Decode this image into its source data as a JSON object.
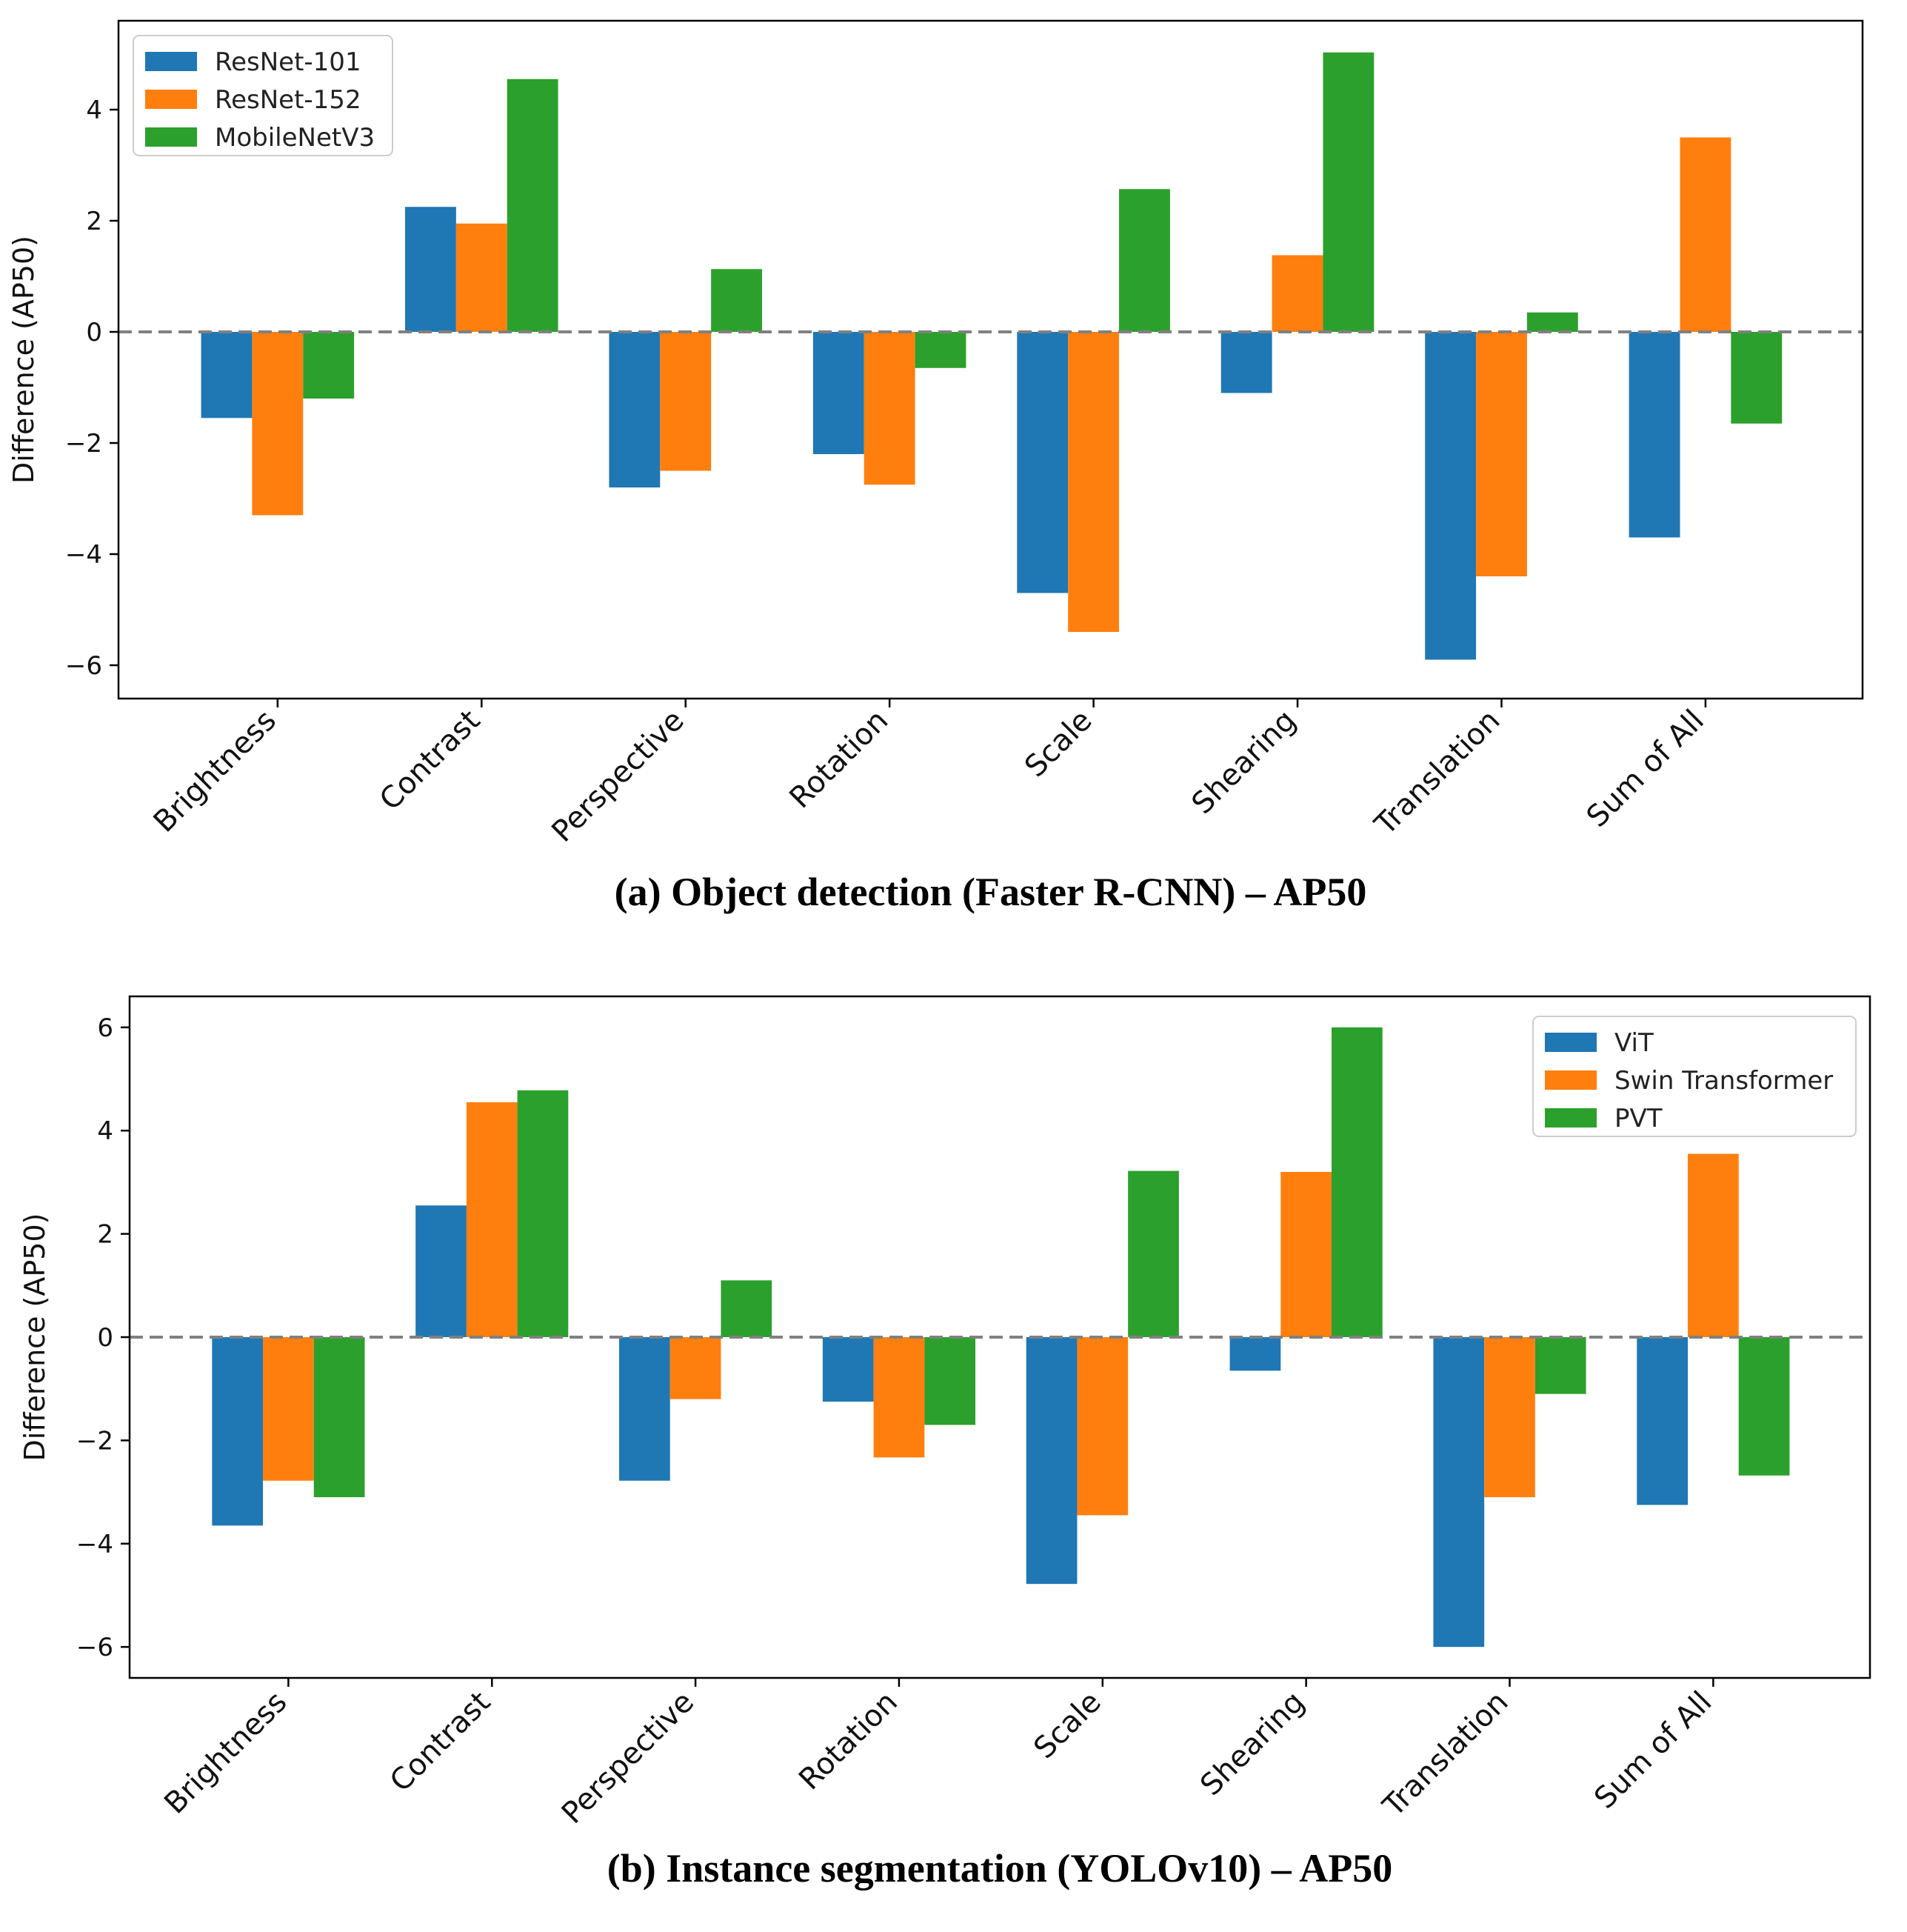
{
  "chart_data": [
    {
      "type": "bar",
      "title": "(a) Object detection (Faster R-CNN) – AP50",
      "xlabel": "",
      "ylabel": "Difference (AP50)",
      "ylim": [
        -6.6,
        5.6
      ],
      "yticks": [
        -6,
        -4,
        -2,
        0,
        2,
        4
      ],
      "ytick_labels": [
        "−6",
        "−4",
        "−2",
        "0",
        "2",
        "4"
      ],
      "grid": false,
      "reference_line": 0,
      "legend_position": "top-left",
      "categories": [
        "Brightness",
        "Contrast",
        "Perspective",
        "Rotation",
        "Scale",
        "Shearing",
        "Translation",
        "Sum of All"
      ],
      "series": [
        {
          "name": "ResNet-101",
          "color": "#1f77b4",
          "values": [
            -1.55,
            2.25,
            -2.8,
            -2.2,
            -4.7,
            -1.1,
            -5.9,
            -3.7
          ]
        },
        {
          "name": "ResNet-152",
          "color": "#ff7f0e",
          "values": [
            -3.3,
            1.95,
            -2.5,
            -2.75,
            -5.4,
            1.38,
            -4.4,
            3.5
          ]
        },
        {
          "name": "MobileNetV3",
          "color": "#2ca02c",
          "values": [
            -1.2,
            4.55,
            1.13,
            -0.65,
            2.57,
            5.03,
            0.35,
            -1.65
          ]
        }
      ]
    },
    {
      "type": "bar",
      "title": "(b) Instance segmentation (YOLOv10) – AP50",
      "xlabel": "",
      "ylabel": "Difference (AP50)",
      "ylim": [
        -6.6,
        6.6
      ],
      "yticks": [
        -6,
        -4,
        -2,
        0,
        2,
        4,
        6
      ],
      "ytick_labels": [
        "−6",
        "−4",
        "−2",
        "0",
        "2",
        "4",
        "6"
      ],
      "grid": false,
      "reference_line": 0,
      "legend_position": "top-right",
      "categories": [
        "Brightness",
        "Contrast",
        "Perspective",
        "Rotation",
        "Scale",
        "Shearing",
        "Translation",
        "Sum of All"
      ],
      "series": [
        {
          "name": "ViT",
          "color": "#1f77b4",
          "values": [
            -3.65,
            2.55,
            -2.78,
            -1.25,
            -4.78,
            -0.65,
            -6.0,
            -3.25
          ]
        },
        {
          "name": "Swin Transformer",
          "color": "#ff7f0e",
          "values": [
            -2.78,
            4.55,
            -1.2,
            -2.33,
            -3.45,
            3.2,
            -3.1,
            3.55
          ]
        },
        {
          "name": "PVT",
          "color": "#2ca02c",
          "values": [
            -3.1,
            4.78,
            1.1,
            -1.7,
            3.22,
            6.0,
            -1.1,
            -2.68
          ]
        }
      ]
    }
  ]
}
